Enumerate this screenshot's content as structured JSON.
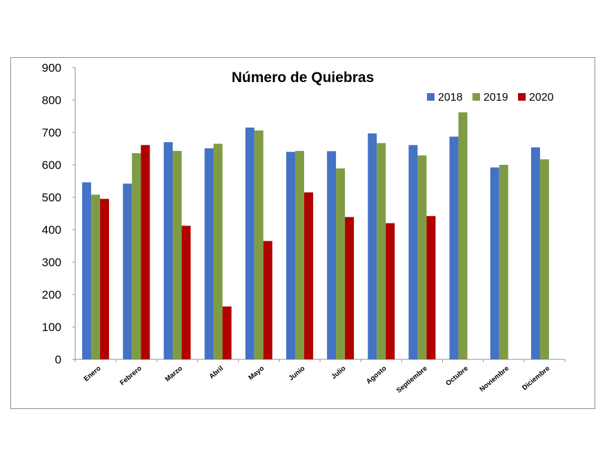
{
  "chart_data": {
    "type": "bar",
    "title": "Número de Quiebras",
    "xlabel": "",
    "ylabel": "",
    "ylim": [
      0,
      900
    ],
    "yticks": [
      0,
      100,
      200,
      300,
      400,
      500,
      600,
      700,
      800,
      900
    ],
    "grid": false,
    "legend_position": "top-right",
    "categories": [
      "Enero",
      "Febrero",
      "Marzo",
      "Abril",
      "Mayo",
      "Junio",
      "Julio",
      "Agosto",
      "Septiembre",
      "Octubre",
      "Noviembre",
      "Diciembre"
    ],
    "series": [
      {
        "name": "2018",
        "color": "#4472C4",
        "values": [
          546,
          542,
          670,
          651,
          715,
          640,
          642,
          697,
          661,
          687,
          592,
          654
        ]
      },
      {
        "name": "2019",
        "color": "#7F9C45",
        "values": [
          508,
          636,
          643,
          665,
          706,
          643,
          589,
          667,
          629,
          762,
          600,
          617
        ]
      },
      {
        "name": "2020",
        "color": "#B00000",
        "values": [
          495,
          661,
          412,
          163,
          365,
          515,
          439,
          420,
          442,
          null,
          null,
          null
        ]
      }
    ]
  }
}
